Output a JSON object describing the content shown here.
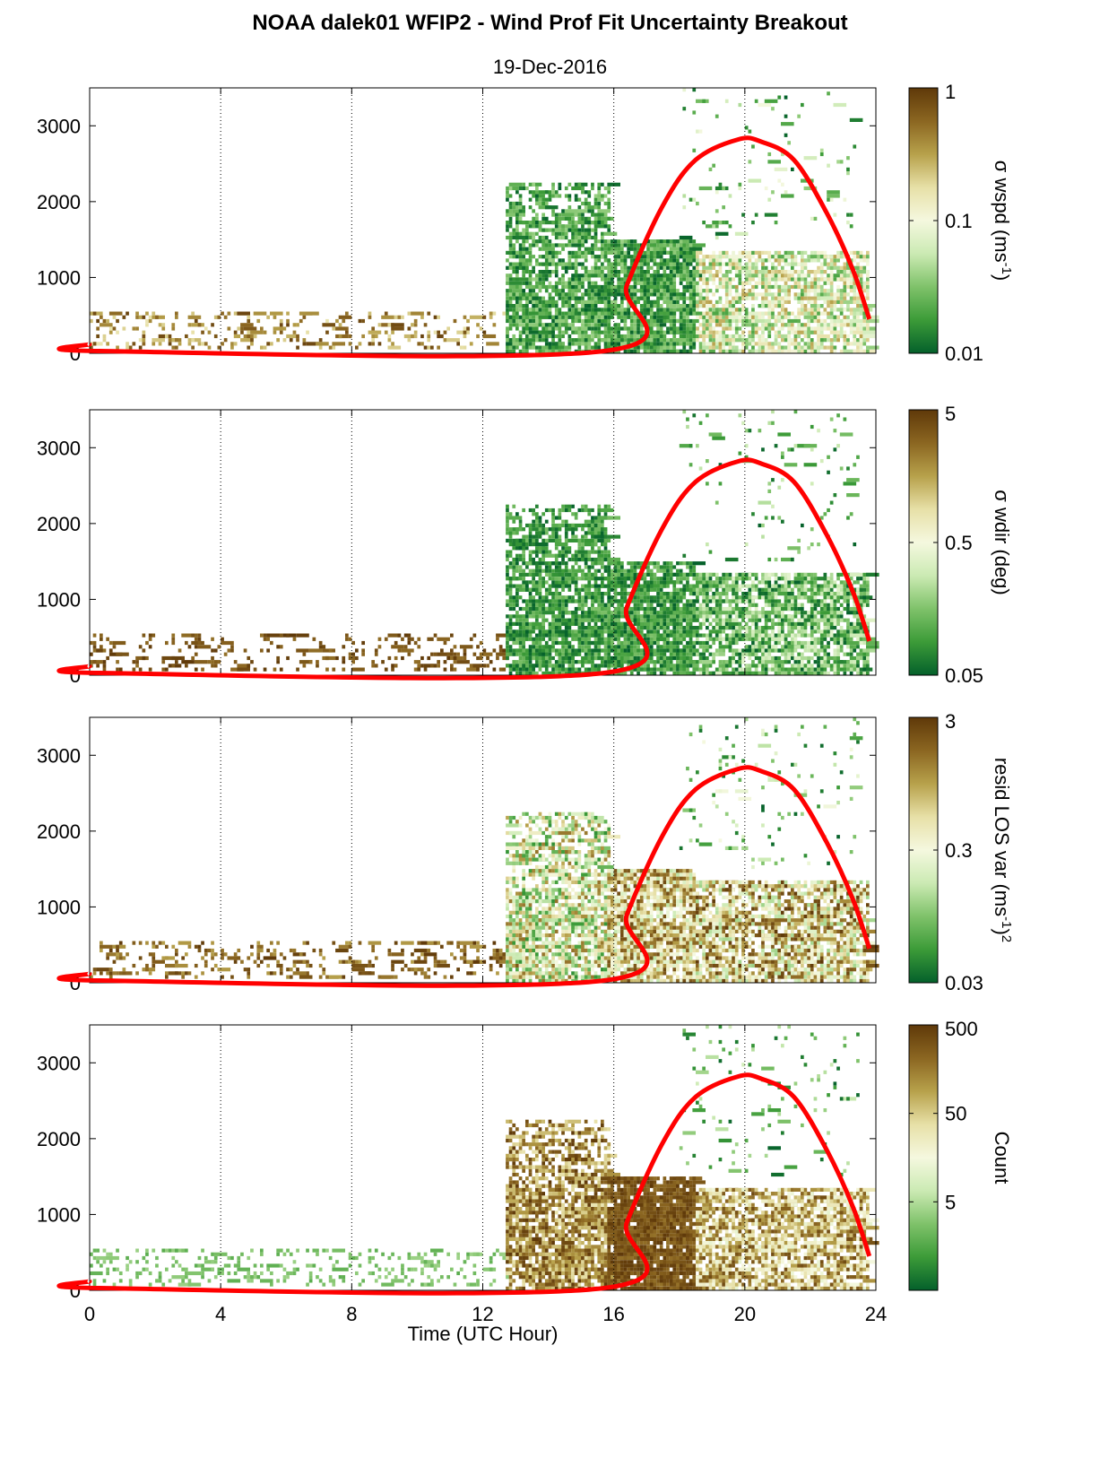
{
  "figure": {
    "title": "NOAA dalek01 WFIP2 - Wind Prof Fit Uncertainty Breakout",
    "subtitle": "19-Dec-2016",
    "xlabel": "Time (UTC Hour)"
  },
  "colors": {
    "cmap": [
      "#04602b",
      "#3c9b38",
      "#7fc26a",
      "#cbeab3",
      "#f5f8df",
      "#e7e0a7",
      "#b7a14b",
      "#8b6621",
      "#5f3909"
    ],
    "sun_curve": "#ff0000"
  },
  "chart_data": [
    {
      "type": "heatmap",
      "panel": 1,
      "colorbar_label": "σ wspd (ms",
      "colorbar_sup": "-1",
      "colorbar_suffix": ")",
      "colorbar_ticks": [
        "1",
        "0.1",
        "0.01"
      ],
      "colorbar_range": [
        0.01,
        1
      ],
      "colorbar_scale": "log",
      "xlim": [
        0,
        24
      ],
      "ylim": [
        0,
        3500
      ],
      "xticks": [
        "0",
        "4",
        "8",
        "12",
        "16",
        "20",
        "24"
      ],
      "yticks": [
        "0",
        "1000",
        "2000",
        "3000"
      ],
      "grid": "vertical dotted at 4, 8, 12, 16, 20",
      "regimes": [
        {
          "x": [
            0,
            12.7
          ],
          "y": [
            50,
            550
          ],
          "density": 0.22,
          "level": [
            0.6,
            0.98
          ]
        },
        {
          "x": [
            12.7,
            15.8
          ],
          "y": [
            0,
            2250
          ],
          "density": 0.8,
          "level": [
            0.0,
            0.3
          ]
        },
        {
          "x": [
            15.8,
            18.5
          ],
          "y": [
            0,
            1500
          ],
          "density": 0.85,
          "level": [
            0.0,
            0.3
          ]
        },
        {
          "x": [
            18.5,
            23.8
          ],
          "y": [
            0,
            1350
          ],
          "density": 0.7,
          "level": [
            0.15,
            0.75
          ]
        },
        {
          "x": [
            18.0,
            23.5
          ],
          "y": [
            1500,
            3500
          ],
          "density": 0.05,
          "level": [
            0.0,
            0.5
          ]
        }
      ],
      "sun_curve": [
        [
          0,
          120
        ],
        [
          0.3,
          30
        ],
        [
          15.7,
          30
        ],
        [
          16.4,
          900
        ],
        [
          17.5,
          1950
        ],
        [
          18.5,
          2550
        ],
        [
          19.8,
          2820
        ],
        [
          20.5,
          2790
        ],
        [
          21.5,
          2550
        ],
        [
          22.5,
          1850
        ],
        [
          23.3,
          1100
        ],
        [
          23.8,
          450
        ]
      ]
    },
    {
      "type": "heatmap",
      "panel": 2,
      "colorbar_label": "σ wdir (deg)",
      "colorbar_sup": "",
      "colorbar_suffix": "",
      "colorbar_ticks": [
        "5",
        "0.5",
        "0.05"
      ],
      "colorbar_range": [
        0.05,
        5
      ],
      "colorbar_scale": "log",
      "xlim": [
        0,
        24
      ],
      "ylim": [
        0,
        3500
      ],
      "xticks": [
        "0",
        "4",
        "8",
        "12",
        "16",
        "20",
        "24"
      ],
      "yticks": [
        "0",
        "1000",
        "2000",
        "3000"
      ],
      "grid": "vertical dotted at 4, 8, 12, 16, 20",
      "regimes": [
        {
          "x": [
            0,
            12.7
          ],
          "y": [
            50,
            550
          ],
          "density": 0.22,
          "level": [
            0.85,
            1.0
          ]
        },
        {
          "x": [
            12.7,
            15.8
          ],
          "y": [
            0,
            2250
          ],
          "density": 0.8,
          "level": [
            0.0,
            0.25
          ]
        },
        {
          "x": [
            15.8,
            18.5
          ],
          "y": [
            0,
            1500
          ],
          "density": 0.85,
          "level": [
            0.0,
            0.25
          ]
        },
        {
          "x": [
            18.5,
            23.8
          ],
          "y": [
            0,
            1350
          ],
          "density": 0.7,
          "level": [
            0.0,
            0.45
          ]
        },
        {
          "x": [
            18.0,
            23.5
          ],
          "y": [
            1500,
            3500
          ],
          "density": 0.05,
          "level": [
            0.0,
            0.4
          ]
        }
      ],
      "sun_curve": [
        [
          0,
          120
        ],
        [
          0.3,
          30
        ],
        [
          15.7,
          30
        ],
        [
          16.4,
          900
        ],
        [
          17.5,
          1950
        ],
        [
          18.5,
          2550
        ],
        [
          19.8,
          2820
        ],
        [
          20.5,
          2790
        ],
        [
          21.5,
          2550
        ],
        [
          22.5,
          1850
        ],
        [
          23.3,
          1100
        ],
        [
          23.8,
          450
        ]
      ]
    },
    {
      "type": "heatmap",
      "panel": 3,
      "colorbar_label": "resid LOS var (ms",
      "colorbar_sup": "-1",
      "colorbar_suffix": ")",
      "colorbar_sup2": "2",
      "colorbar_ticks": [
        "3",
        "0.3",
        "0.03"
      ],
      "colorbar_range": [
        0.03,
        3
      ],
      "colorbar_scale": "log",
      "xlim": [
        0,
        24
      ],
      "ylim": [
        0,
        3500
      ],
      "xticks": [
        "0",
        "4",
        "8",
        "12",
        "16",
        "20",
        "24"
      ],
      "yticks": [
        "0",
        "1000",
        "2000",
        "3000"
      ],
      "grid": "vertical dotted at 4, 8, 12, 16, 20",
      "regimes": [
        {
          "x": [
            0,
            12.7
          ],
          "y": [
            50,
            550
          ],
          "density": 0.22,
          "level": [
            0.75,
            1.0
          ]
        },
        {
          "x": [
            12.7,
            15.8
          ],
          "y": [
            0,
            2250
          ],
          "density": 0.8,
          "level": [
            0.1,
            0.85
          ]
        },
        {
          "x": [
            15.8,
            18.5
          ],
          "y": [
            0,
            1500
          ],
          "density": 0.85,
          "level": [
            0.35,
            0.95
          ]
        },
        {
          "x": [
            18.5,
            23.8
          ],
          "y": [
            0,
            1350
          ],
          "density": 0.75,
          "level": [
            0.3,
            1.0
          ]
        },
        {
          "x": [
            18.0,
            23.5
          ],
          "y": [
            1500,
            3500
          ],
          "density": 0.05,
          "level": [
            0.0,
            0.5
          ]
        }
      ],
      "sun_curve": [
        [
          0,
          120
        ],
        [
          0.3,
          30
        ],
        [
          15.7,
          30
        ],
        [
          16.4,
          900
        ],
        [
          17.5,
          1950
        ],
        [
          18.5,
          2550
        ],
        [
          19.8,
          2820
        ],
        [
          20.5,
          2790
        ],
        [
          21.5,
          2550
        ],
        [
          22.5,
          1850
        ],
        [
          23.3,
          1100
        ],
        [
          23.8,
          450
        ]
      ]
    },
    {
      "type": "heatmap",
      "panel": 4,
      "colorbar_label": "Count",
      "colorbar_sup": "",
      "colorbar_suffix": "",
      "colorbar_ticks": [
        "500",
        "50",
        "5"
      ],
      "colorbar_range": [
        0.5,
        500
      ],
      "colorbar_scale": "log",
      "xlim": [
        0,
        24
      ],
      "ylim": [
        0,
        3500
      ],
      "xticks": [
        "0",
        "4",
        "8",
        "12",
        "16",
        "20",
        "24"
      ],
      "yticks": [
        "0",
        "1000",
        "2000",
        "3000"
      ],
      "grid": "vertical dotted at 4, 8, 12, 16, 20",
      "regimes": [
        {
          "x": [
            0,
            12.7
          ],
          "y": [
            50,
            550
          ],
          "density": 0.22,
          "level": [
            0.18,
            0.3
          ]
        },
        {
          "x": [
            12.7,
            15.8
          ],
          "y": [
            0,
            2250
          ],
          "density": 0.8,
          "level": [
            0.6,
            1.0
          ]
        },
        {
          "x": [
            15.8,
            18.5
          ],
          "y": [
            0,
            1500
          ],
          "density": 0.9,
          "level": [
            0.85,
            1.0
          ]
        },
        {
          "x": [
            18.5,
            23.8
          ],
          "y": [
            0,
            1350
          ],
          "density": 0.75,
          "level": [
            0.45,
            0.95
          ]
        },
        {
          "x": [
            18.0,
            23.5
          ],
          "y": [
            1500,
            3500
          ],
          "density": 0.05,
          "level": [
            0.0,
            0.4
          ]
        }
      ],
      "sun_curve": [
        [
          0,
          120
        ],
        [
          0.3,
          30
        ],
        [
          15.7,
          30
        ],
        [
          16.4,
          900
        ],
        [
          17.5,
          1950
        ],
        [
          18.5,
          2550
        ],
        [
          19.8,
          2820
        ],
        [
          20.5,
          2790
        ],
        [
          21.5,
          2550
        ],
        [
          22.5,
          1850
        ],
        [
          23.3,
          1100
        ],
        [
          23.8,
          450
        ]
      ]
    }
  ]
}
